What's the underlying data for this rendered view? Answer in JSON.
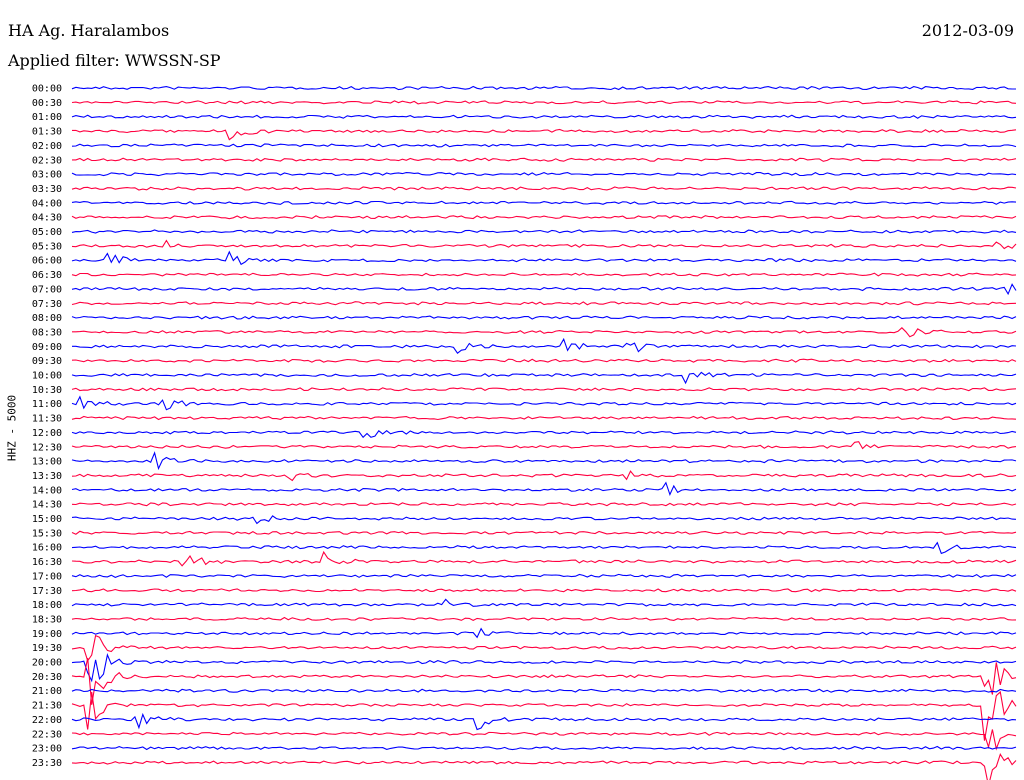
{
  "header": {
    "station": "HA Ag. Haralambos",
    "date": "2012-03-09",
    "filter": "Applied filter: WWSSN-SP"
  },
  "chart_data": {
    "type": "line",
    "ylabel": "HHZ - 5000",
    "colors": [
      "#0000ff",
      "#ff0040"
    ],
    "row_labels": [
      "00:00",
      "00:30",
      "01:00",
      "01:30",
      "02:00",
      "02:30",
      "03:00",
      "03:30",
      "04:00",
      "04:30",
      "05:00",
      "05:30",
      "06:00",
      "06:30",
      "07:00",
      "07:30",
      "08:00",
      "08:30",
      "09:00",
      "09:30",
      "10:00",
      "10:30",
      "11:00",
      "11:30",
      "12:00",
      "12:30",
      "13:00",
      "13:30",
      "14:00",
      "14:30",
      "15:00",
      "15:30",
      "16:00",
      "16:30",
      "17:00",
      "17:30",
      "18:00",
      "18:30",
      "19:00",
      "19:30",
      "20:00",
      "20:30",
      "21:00",
      "21:30",
      "22:00",
      "22:30",
      "23:00",
      "23:30"
    ],
    "events": [
      {
        "row": 3,
        "at": 0.17,
        "amp": 12
      },
      {
        "row": 11,
        "at": 0.1,
        "amp": 5
      },
      {
        "row": 11,
        "at": 0.98,
        "amp": 5
      },
      {
        "row": 12,
        "at": 0.04,
        "amp": 8
      },
      {
        "row": 12,
        "at": 0.17,
        "amp": 8
      },
      {
        "row": 14,
        "at": 0.99,
        "amp": 6
      },
      {
        "row": 17,
        "at": 0.88,
        "amp": 7
      },
      {
        "row": 18,
        "at": 0.41,
        "amp": 6
      },
      {
        "row": 18,
        "at": 0.52,
        "amp": 8
      },
      {
        "row": 18,
        "at": 0.59,
        "amp": 10
      },
      {
        "row": 20,
        "at": 0.65,
        "amp": 8
      },
      {
        "row": 22,
        "at": 0.01,
        "amp": 6
      },
      {
        "row": 22,
        "at": 0.1,
        "amp": 6
      },
      {
        "row": 24,
        "at": 0.31,
        "amp": 7
      },
      {
        "row": 25,
        "at": 0.83,
        "amp": 7
      },
      {
        "row": 26,
        "at": 0.09,
        "amp": 9
      },
      {
        "row": 27,
        "at": 0.23,
        "amp": 6
      },
      {
        "row": 27,
        "at": 0.59,
        "amp": 5
      },
      {
        "row": 28,
        "at": 0.63,
        "amp": 6
      },
      {
        "row": 30,
        "at": 0.2,
        "amp": 5
      },
      {
        "row": 32,
        "at": 0.92,
        "amp": 7
      },
      {
        "row": 33,
        "at": 0.12,
        "amp": 10
      },
      {
        "row": 33,
        "at": 0.27,
        "amp": 8
      },
      {
        "row": 36,
        "at": 0.4,
        "amp": 6
      },
      {
        "row": 38,
        "at": 0.43,
        "amp": 7
      },
      {
        "row": 39,
        "at": 0.02,
        "amp": 30
      },
      {
        "row": 40,
        "at": 0.02,
        "amp": 35
      },
      {
        "row": 41,
        "at": 0.02,
        "amp": 40
      },
      {
        "row": 41,
        "at": 0.97,
        "amp": 30
      },
      {
        "row": 43,
        "at": 0.02,
        "amp": 25
      },
      {
        "row": 43,
        "at": 0.97,
        "amp": 35
      },
      {
        "row": 44,
        "at": 0.07,
        "amp": 8
      },
      {
        "row": 44,
        "at": 0.43,
        "amp": 12
      },
      {
        "row": 45,
        "at": 0.97,
        "amp": 30
      },
      {
        "row": 47,
        "at": 0.97,
        "amp": 25
      }
    ]
  }
}
